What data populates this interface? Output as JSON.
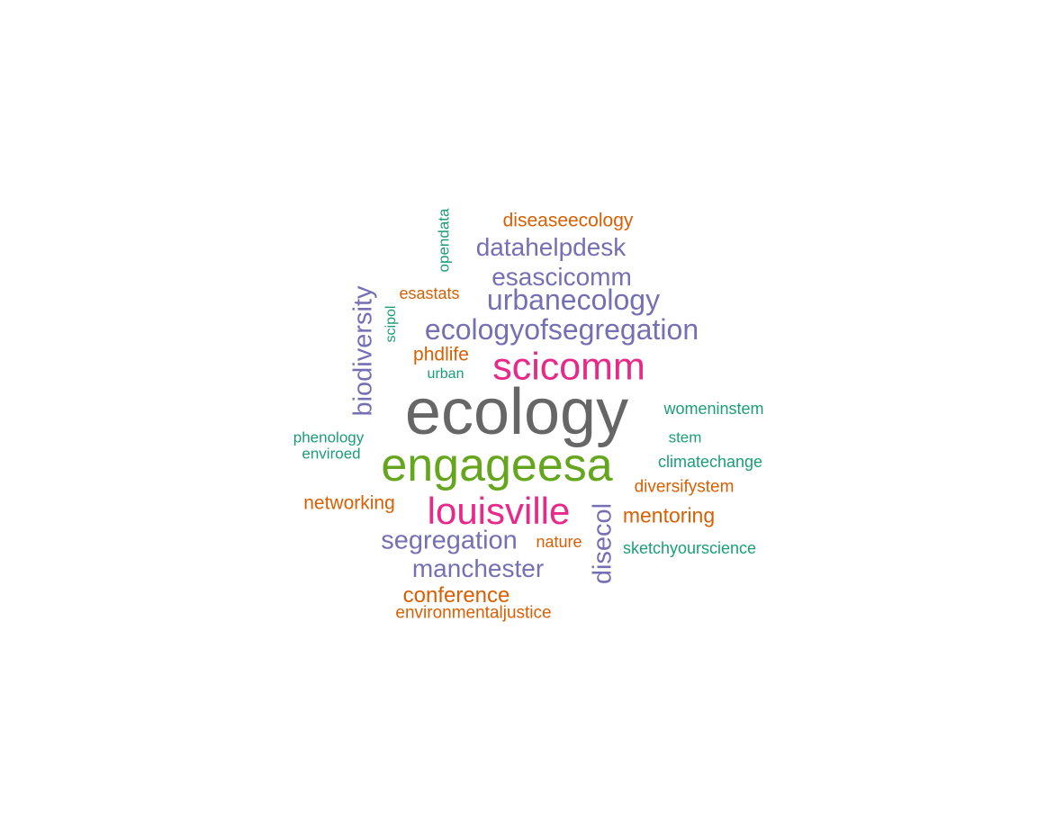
{
  "colors": {
    "gray": "#666666",
    "green": "#66A61E",
    "magenta": "#E7298A",
    "purple": "#7570B3",
    "orange": "#D95F02",
    "teal": "#1B9E77"
  },
  "words": [
    {
      "text": "ecology",
      "color": "#666666",
      "frequency": 10
    },
    {
      "text": "engageesa",
      "color": "#66A61E",
      "frequency": 7
    },
    {
      "text": "louisville",
      "color": "#E7298A",
      "frequency": 6
    },
    {
      "text": "scicomm",
      "color": "#E7298A",
      "frequency": 6
    },
    {
      "text": "ecologyofsegregation",
      "color": "#7570B3",
      "frequency": 5
    },
    {
      "text": "urbanecology",
      "color": "#7570B3",
      "frequency": 5
    },
    {
      "text": "biodiversity",
      "color": "#7570B3",
      "frequency": 4
    },
    {
      "text": "disecol",
      "color": "#7570B3",
      "frequency": 4
    },
    {
      "text": "segregation",
      "color": "#7570B3",
      "frequency": 4
    },
    {
      "text": "manchester",
      "color": "#7570B3",
      "frequency": 4
    },
    {
      "text": "esascicomm",
      "color": "#7570B3",
      "frequency": 4
    },
    {
      "text": "datahelpdesk",
      "color": "#7570B3",
      "frequency": 4
    },
    {
      "text": "conference",
      "color": "#D95F02",
      "frequency": 3
    },
    {
      "text": "mentoring",
      "color": "#D95F02",
      "frequency": 3
    },
    {
      "text": "networking",
      "color": "#D95F02",
      "frequency": 3
    },
    {
      "text": "diseaseecology",
      "color": "#D95F02",
      "frequency": 3
    },
    {
      "text": "phdlife",
      "color": "#D95F02",
      "frequency": 3
    },
    {
      "text": "esastats",
      "color": "#D95F02",
      "frequency": 2
    },
    {
      "text": "diversifystem",
      "color": "#D95F02",
      "frequency": 2
    },
    {
      "text": "nature",
      "color": "#D95F02",
      "frequency": 2
    },
    {
      "text": "environmentaljustice",
      "color": "#D95F02",
      "frequency": 2
    },
    {
      "text": "womeninstem",
      "color": "#1B9E77",
      "frequency": 2
    },
    {
      "text": "climatechange",
      "color": "#1B9E77",
      "frequency": 2
    },
    {
      "text": "sketchyourscience",
      "color": "#1B9E77",
      "frequency": 2
    },
    {
      "text": "stem",
      "color": "#1B9E77",
      "frequency": 1
    },
    {
      "text": "phenology",
      "color": "#1B9E77",
      "frequency": 1
    },
    {
      "text": "enviroed",
      "color": "#1B9E77",
      "frequency": 1
    },
    {
      "text": "opendata",
      "color": "#1B9E77",
      "frequency": 1
    },
    {
      "text": "scipol",
      "color": "#1B9E77",
      "frequency": 1
    },
    {
      "text": "urban",
      "color": "#1B9E77",
      "frequency": 1
    }
  ]
}
